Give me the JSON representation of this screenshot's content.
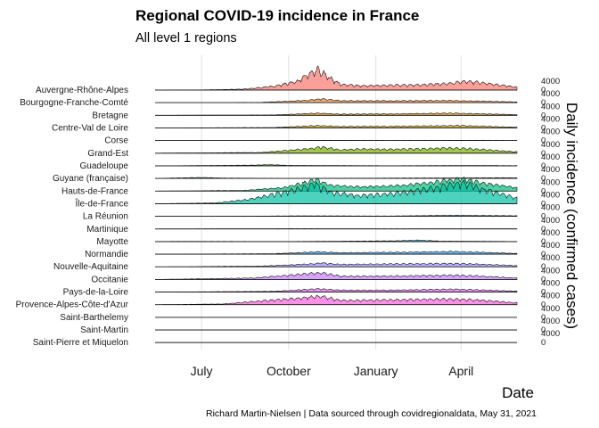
{
  "chart_data": {
    "type": "area",
    "variant": "ridgeline",
    "title": "Regional COVID-19 incidence in France",
    "subtitle": "All level 1 regions",
    "xlabel": "Date",
    "ylabel": "Daily incidence (confirmed cases)",
    "caption": "Richard Martin-Nielsen | Data sourced through covidregionaldata, May 31, 2021",
    "x_range": [
      "2020-05-13",
      "2021-05-30"
    ],
    "x_ticks": [
      {
        "date": "2020-07-01",
        "label": "July"
      },
      {
        "date": "2020-10-01",
        "label": "October"
      },
      {
        "date": "2021-01-01",
        "label": "January"
      },
      {
        "date": "2021-04-01",
        "label": "April"
      }
    ],
    "y_tick_values": [
      "0",
      "4000"
    ],
    "per_row_ylim": [
      0,
      4000
    ],
    "grid": true,
    "legend": "none",
    "series": [
      {
        "name": "Auvergne-Rhône-Alpes",
        "color": "#F8766D",
        "points": [
          [
            "2020-05-13",
            0
          ],
          [
            "2020-07-01",
            40
          ],
          [
            "2020-08-15",
            200
          ],
          [
            "2020-09-15",
            800
          ],
          [
            "2020-10-10",
            1800
          ],
          [
            "2020-10-22",
            3400
          ],
          [
            "2020-11-01",
            4300
          ],
          [
            "2020-11-10",
            3000
          ],
          [
            "2020-11-25",
            1200
          ],
          [
            "2020-12-15",
            900
          ],
          [
            "2021-01-10",
            1000
          ],
          [
            "2021-02-15",
            1100
          ],
          [
            "2021-03-20",
            1400
          ],
          [
            "2021-04-05",
            1800
          ],
          [
            "2021-04-25",
            1500
          ],
          [
            "2021-05-30",
            600
          ]
        ]
      },
      {
        "name": "Bourgogne-Franche-Comté",
        "color": "#EA8331",
        "points": [
          [
            "2020-05-13",
            0
          ],
          [
            "2020-09-01",
            50
          ],
          [
            "2020-10-20",
            500
          ],
          [
            "2020-11-05",
            800
          ],
          [
            "2020-11-25",
            400
          ],
          [
            "2021-01-10",
            400
          ],
          [
            "2021-03-20",
            450
          ],
          [
            "2021-04-15",
            350
          ],
          [
            "2021-05-30",
            150
          ]
        ]
      },
      {
        "name": "Bretagne",
        "color": "#D89000",
        "points": [
          [
            "2020-05-13",
            0
          ],
          [
            "2020-09-15",
            80
          ],
          [
            "2020-11-01",
            450
          ],
          [
            "2020-11-25",
            250
          ],
          [
            "2021-01-15",
            300
          ],
          [
            "2021-03-25",
            450
          ],
          [
            "2021-04-15",
            350
          ],
          [
            "2021-05-30",
            150
          ]
        ]
      },
      {
        "name": "Centre-Val de Loire",
        "color": "#C09B00",
        "points": [
          [
            "2020-05-13",
            0
          ],
          [
            "2020-09-15",
            80
          ],
          [
            "2020-11-01",
            500
          ],
          [
            "2020-11-25",
            300
          ],
          [
            "2021-01-15",
            350
          ],
          [
            "2021-04-01",
            500
          ],
          [
            "2021-05-30",
            150
          ]
        ]
      },
      {
        "name": "Corse",
        "color": "#A3A500",
        "points": [
          [
            "2020-05-13",
            0
          ],
          [
            "2020-09-15",
            20
          ],
          [
            "2020-11-01",
            60
          ],
          [
            "2021-01-15",
            30
          ],
          [
            "2021-04-15",
            60
          ],
          [
            "2021-05-30",
            20
          ]
        ]
      },
      {
        "name": "Grand-Est",
        "color": "#7CAE00",
        "points": [
          [
            "2020-05-13",
            0
          ],
          [
            "2020-09-01",
            150
          ],
          [
            "2020-10-20",
            900
          ],
          [
            "2020-11-05",
            1300
          ],
          [
            "2020-11-25",
            700
          ],
          [
            "2020-12-20",
            900
          ],
          [
            "2021-01-15",
            800
          ],
          [
            "2021-02-15",
            900
          ],
          [
            "2021-03-25",
            1100
          ],
          [
            "2021-04-15",
            900
          ],
          [
            "2021-05-30",
            300
          ]
        ]
      },
      {
        "name": "Guadeloupe",
        "color": "#39B600",
        "points": [
          [
            "2020-05-13",
            0
          ],
          [
            "2020-08-25",
            150
          ],
          [
            "2020-09-10",
            250
          ],
          [
            "2020-10-01",
            100
          ],
          [
            "2021-01-15",
            30
          ],
          [
            "2021-04-15",
            80
          ],
          [
            "2021-05-30",
            40
          ]
        ]
      },
      {
        "name": "Guyane (française)",
        "color": "#00BB4E",
        "points": [
          [
            "2020-05-13",
            0
          ],
          [
            "2020-06-15",
            150
          ],
          [
            "2020-07-01",
            200
          ],
          [
            "2020-07-25",
            80
          ],
          [
            "2020-10-01",
            20
          ],
          [
            "2021-03-15",
            100
          ],
          [
            "2021-05-15",
            150
          ],
          [
            "2021-05-30",
            120
          ]
        ]
      },
      {
        "name": "Hauts-de-France",
        "color": "#00BF7D",
        "points": [
          [
            "2020-05-13",
            0
          ],
          [
            "2020-08-15",
            150
          ],
          [
            "2020-09-25",
            700
          ],
          [
            "2020-10-20",
            1900
          ],
          [
            "2020-10-30",
            2400
          ],
          [
            "2020-11-15",
            1200
          ],
          [
            "2020-12-15",
            900
          ],
          [
            "2021-01-20",
            1100
          ],
          [
            "2021-02-20",
            1600
          ],
          [
            "2021-03-20",
            2300
          ],
          [
            "2021-04-05",
            2600
          ],
          [
            "2021-04-20",
            1800
          ],
          [
            "2021-05-30",
            700
          ]
        ]
      },
      {
        "name": "Île-de-France",
        "color": "#00C1A3",
        "points": [
          [
            "2020-05-13",
            0
          ],
          [
            "2020-07-15",
            150
          ],
          [
            "2020-08-20",
            900
          ],
          [
            "2020-09-25",
            2400
          ],
          [
            "2020-10-20",
            3600
          ],
          [
            "2020-10-30",
            4200
          ],
          [
            "2020-11-15",
            2400
          ],
          [
            "2020-12-15",
            1700
          ],
          [
            "2021-01-20",
            2100
          ],
          [
            "2021-02-20",
            2900
          ],
          [
            "2021-03-20",
            3900
          ],
          [
            "2021-04-05",
            4400
          ],
          [
            "2021-04-20",
            3200
          ],
          [
            "2021-05-30",
            1200
          ]
        ]
      },
      {
        "name": "La Réunion",
        "color": "#00BFC4",
        "points": [
          [
            "2020-05-13",
            0
          ],
          [
            "2020-09-01",
            50
          ],
          [
            "2020-10-15",
            100
          ],
          [
            "2021-01-15",
            60
          ],
          [
            "2021-03-25",
            220
          ],
          [
            "2021-05-30",
            120
          ]
        ]
      },
      {
        "name": "Martinique",
        "color": "#00BAE0",
        "points": [
          [
            "2020-05-13",
            0
          ],
          [
            "2020-09-15",
            50
          ],
          [
            "2020-10-15",
            60
          ],
          [
            "2021-01-15",
            20
          ],
          [
            "2021-04-15",
            40
          ],
          [
            "2021-05-30",
            30
          ]
        ]
      },
      {
        "name": "Mayotte",
        "color": "#00B0F6",
        "points": [
          [
            "2020-05-13",
            0
          ],
          [
            "2020-06-01",
            40
          ],
          [
            "2020-10-01",
            20
          ],
          [
            "2021-01-20",
            150
          ],
          [
            "2021-02-15",
            300
          ],
          [
            "2021-03-10",
            100
          ],
          [
            "2021-05-30",
            20
          ]
        ]
      },
      {
        "name": "Normandie",
        "color": "#35A2FF",
        "points": [
          [
            "2020-05-13",
            0
          ],
          [
            "2020-09-15",
            100
          ],
          [
            "2020-11-01",
            500
          ],
          [
            "2020-11-25",
            300
          ],
          [
            "2021-01-15",
            400
          ],
          [
            "2021-03-25",
            550
          ],
          [
            "2021-04-15",
            450
          ],
          [
            "2021-05-30",
            150
          ]
        ]
      },
      {
        "name": "Nouvelle-Aquitaine",
        "color": "#9590FF",
        "points": [
          [
            "2020-05-13",
            0
          ],
          [
            "2020-09-01",
            150
          ],
          [
            "2020-10-25",
            600
          ],
          [
            "2020-11-05",
            800
          ],
          [
            "2020-11-25",
            500
          ],
          [
            "2021-01-15",
            600
          ],
          [
            "2021-03-25",
            700
          ],
          [
            "2021-04-15",
            600
          ],
          [
            "2021-05-30",
            250
          ]
        ]
      },
      {
        "name": "Occitanie",
        "color": "#C77CFF",
        "points": [
          [
            "2020-05-13",
            0
          ],
          [
            "2020-08-25",
            300
          ],
          [
            "2020-10-01",
            900
          ],
          [
            "2020-10-28",
            1300
          ],
          [
            "2020-11-05",
            1400
          ],
          [
            "2020-11-25",
            700
          ],
          [
            "2021-01-15",
            700
          ],
          [
            "2021-03-25",
            900
          ],
          [
            "2021-04-15",
            750
          ],
          [
            "2021-05-30",
            300
          ]
        ]
      },
      {
        "name": "Pays-de-la-Loire",
        "color": "#E76BF3",
        "points": [
          [
            "2020-05-13",
            0
          ],
          [
            "2020-09-15",
            150
          ],
          [
            "2020-11-01",
            700
          ],
          [
            "2020-11-25",
            400
          ],
          [
            "2021-01-15",
            400
          ],
          [
            "2021-03-25",
            600
          ],
          [
            "2021-04-15",
            500
          ],
          [
            "2021-05-30",
            200
          ]
        ]
      },
      {
        "name": "Provence-Alpes-Côte-d'Azur",
        "color": "#FA62DB",
        "points": [
          [
            "2020-05-13",
            0
          ],
          [
            "2020-07-25",
            150
          ],
          [
            "2020-08-25",
            700
          ],
          [
            "2020-09-25",
            1100
          ],
          [
            "2020-10-25",
            1600
          ],
          [
            "2020-11-05",
            1800
          ],
          [
            "2020-11-25",
            900
          ],
          [
            "2021-01-15",
            1000
          ],
          [
            "2021-03-15",
            1200
          ],
          [
            "2021-04-10",
            1100
          ],
          [
            "2021-05-30",
            400
          ]
        ]
      },
      {
        "name": "Saint-Barthelemy",
        "color": "#FF62BC",
        "points": [
          [
            "2020-05-13",
            0
          ],
          [
            "2021-05-30",
            0
          ]
        ]
      },
      {
        "name": "Saint-Martin",
        "color": "#FF6C91",
        "points": [
          [
            "2020-05-13",
            0
          ],
          [
            "2021-05-30",
            0
          ]
        ]
      },
      {
        "name": "Saint-Pierre et Miquelon",
        "color": "#F8766D",
        "points": [
          [
            "2020-05-13",
            0
          ],
          [
            "2021-05-30",
            0
          ]
        ]
      }
    ]
  }
}
